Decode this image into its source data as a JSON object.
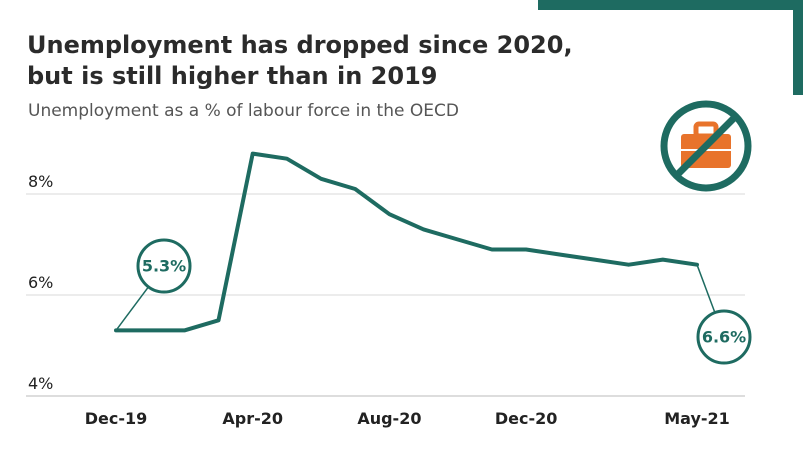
{
  "header": {
    "title_line1": "Unemployment has dropped since 2020,",
    "title_line2": "but is still higher than in 2019",
    "subtitle": "Unemployment as a % of labour force in the OECD"
  },
  "icon": {
    "name": "no-briefcase-icon",
    "ring_color": "#1e6b61",
    "case_color": "#e8732b"
  },
  "callouts": [
    {
      "text": "5.3%"
    },
    {
      "text": "6.6%"
    }
  ],
  "chart_data": {
    "type": "line",
    "title": "Unemployment has dropped since 2020, but is still higher than in 2019",
    "subtitle": "Unemployment as a % of labour force in the OECD",
    "xlabel": "",
    "ylabel": "",
    "x": [
      "Dec-19",
      "Jan-20",
      "Feb-20",
      "Mar-20",
      "Apr-20",
      "May-20",
      "Jun-20",
      "Jul-20",
      "Aug-20",
      "Sep-20",
      "Oct-20",
      "Nov-20",
      "Dec-20",
      "Jan-21",
      "Feb-21",
      "Mar-21",
      "Apr-21",
      "May-21"
    ],
    "x_tick_labels": [
      "Dec-19",
      "Apr-20",
      "Aug-20",
      "Dec-20",
      "May-21"
    ],
    "y_tick_labels": [
      "4%",
      "6%",
      "8%"
    ],
    "ylim": [
      4,
      10
    ],
    "grid": true,
    "line_color": "#1e6b61",
    "series": [
      {
        "values": [
          5.3,
          5.3,
          5.3,
          5.5,
          8.8,
          8.7,
          8.3,
          8.1,
          7.6,
          7.3,
          7.1,
          6.9,
          6.9,
          6.8,
          6.7,
          6.6,
          6.7,
          6.6
        ]
      }
    ]
  }
}
